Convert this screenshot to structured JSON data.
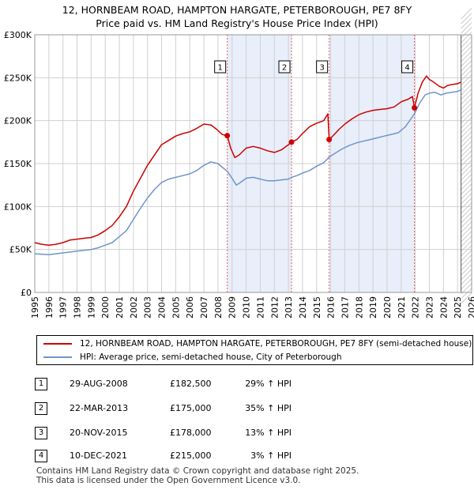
{
  "title": {
    "line1": "12, HORNBEAM ROAD, HAMPTON HARGATE, PETERBOROUGH, PE7 8FY",
    "line2": "Price paid vs. HM Land Registry's House Price Index (HPI)"
  },
  "colors": {
    "property_line": "#cc0000",
    "hpi_line": "#6e96c8",
    "shade": "#e8eefa",
    "marker_line": "#e06060"
  },
  "chart_data": {
    "type": "line",
    "ylabel": "",
    "xlabel": "",
    "ylim": [
      0,
      300000
    ],
    "xlim": [
      1995,
      2026
    ],
    "y_ticks": [
      {
        "value": 0,
        "label": "£0"
      },
      {
        "value": 50000,
        "label": "£50K"
      },
      {
        "value": 100000,
        "label": "£100K"
      },
      {
        "value": 150000,
        "label": "£150K"
      },
      {
        "value": 200000,
        "label": "£200K"
      },
      {
        "value": 250000,
        "label": "£250K"
      },
      {
        "value": 300000,
        "label": "£300K"
      }
    ],
    "x_ticks": [
      "1995",
      "1996",
      "1997",
      "1998",
      "1999",
      "2000",
      "2001",
      "2002",
      "2003",
      "2004",
      "2005",
      "2006",
      "2007",
      "2008",
      "2009",
      "2010",
      "2011",
      "2012",
      "2013",
      "2014",
      "2015",
      "2016",
      "2017",
      "2018",
      "2019",
      "2020",
      "2021",
      "2022",
      "2023",
      "2024",
      "2025",
      "2026"
    ],
    "shaded_ranges": [
      [
        2008.66,
        2013.22
      ],
      [
        2015.89,
        2021.94
      ]
    ],
    "forecast_start": 2025.25,
    "series": [
      {
        "name": "12, HORNBEAM ROAD, HAMPTON HARGATE, PETERBOROUGH, PE7 8FY (semi-detached house)",
        "x": [
          1995.0,
          1995.5,
          1996.0,
          1996.5,
          1997.0,
          1997.5,
          1998.0,
          1998.5,
          1999.0,
          1999.5,
          2000.0,
          2000.5,
          2001.0,
          2001.5,
          2002.0,
          2002.5,
          2003.0,
          2003.5,
          2004.0,
          2004.5,
          2005.0,
          2005.5,
          2006.0,
          2006.5,
          2007.0,
          2007.5,
          2007.9,
          2008.3,
          2008.66,
          2008.9,
          2009.2,
          2009.5,
          2010.0,
          2010.5,
          2011.0,
          2011.5,
          2012.0,
          2012.5,
          2013.0,
          2013.22,
          2013.6,
          2014.0,
          2014.5,
          2015.0,
          2015.5,
          2015.8,
          2015.89,
          2016.2,
          2016.6,
          2017.0,
          2017.5,
          2018.0,
          2018.5,
          2019.0,
          2019.5,
          2020.0,
          2020.5,
          2021.0,
          2021.5,
          2021.8,
          2021.94,
          2022.2,
          2022.5,
          2022.8,
          2023.0,
          2023.3,
          2023.7,
          2024.0,
          2024.3,
          2024.6,
          2025.0,
          2025.25
        ],
        "y": [
          58000,
          56000,
          55000,
          56000,
          58000,
          61000,
          62000,
          63000,
          64000,
          67000,
          72000,
          78000,
          88000,
          100000,
          118000,
          133000,
          148000,
          160000,
          172000,
          177000,
          182000,
          185000,
          187000,
          191000,
          196000,
          195000,
          190000,
          184000,
          182500,
          168000,
          157000,
          160000,
          168000,
          170000,
          168000,
          165000,
          163000,
          166000,
          172000,
          175000,
          178000,
          185000,
          193000,
          197000,
          200000,
          208000,
          178000,
          183000,
          190000,
          196000,
          202000,
          207000,
          210000,
          212000,
          213000,
          214000,
          216000,
          222000,
          225000,
          228000,
          215000,
          232000,
          245000,
          252000,
          248000,
          245000,
          240000,
          238000,
          241000,
          242000,
          243000,
          245000
        ]
      },
      {
        "name": "HPI: Average price, semi-detached house, City of Peterborough",
        "x": [
          1995.0,
          1995.5,
          1996.0,
          1996.5,
          1997.0,
          1997.5,
          1998.0,
          1998.5,
          1999.0,
          1999.5,
          2000.0,
          2000.5,
          2001.0,
          2001.5,
          2002.0,
          2002.5,
          2003.0,
          2003.5,
          2004.0,
          2004.5,
          2005.0,
          2005.5,
          2006.0,
          2006.5,
          2007.0,
          2007.5,
          2008.0,
          2008.66,
          2009.0,
          2009.3,
          2009.6,
          2010.0,
          2010.5,
          2011.0,
          2011.5,
          2012.0,
          2012.5,
          2013.0,
          2013.22,
          2013.6,
          2014.0,
          2014.5,
          2015.0,
          2015.5,
          2015.89,
          2016.3,
          2016.8,
          2017.3,
          2017.8,
          2018.3,
          2018.8,
          2019.3,
          2019.8,
          2020.3,
          2020.8,
          2021.3,
          2021.94,
          2022.3,
          2022.7,
          2023.0,
          2023.4,
          2023.8,
          2024.2,
          2024.6,
          2025.0,
          2025.25
        ],
        "y": [
          45000,
          44500,
          44000,
          45000,
          46000,
          47000,
          48000,
          49000,
          50000,
          52000,
          55000,
          58000,
          65000,
          72000,
          85000,
          98000,
          110000,
          120000,
          128000,
          132000,
          134000,
          136000,
          138000,
          142000,
          148000,
          152000,
          150000,
          141000,
          133000,
          125000,
          128000,
          133000,
          134000,
          132000,
          130000,
          130000,
          131000,
          132000,
          134000,
          136000,
          139000,
          142000,
          147000,
          151000,
          157500,
          162000,
          167000,
          171000,
          174000,
          176000,
          178000,
          180000,
          182000,
          184000,
          186000,
          193000,
          208000,
          220000,
          230000,
          232000,
          233000,
          230000,
          232000,
          233000,
          234000,
          236000
        ]
      }
    ],
    "markers": [
      {
        "label": "1",
        "x": 2008.66,
        "y": 182500
      },
      {
        "label": "2",
        "x": 2013.22,
        "y": 175000
      },
      {
        "label": "3",
        "x": 2015.89,
        "y": 178000
      },
      {
        "label": "4",
        "x": 2021.94,
        "y": 215000
      }
    ]
  },
  "legend": {
    "property": "12, HORNBEAM ROAD, HAMPTON HARGATE, PETERBOROUGH, PE7 8FY (semi-detached house)",
    "hpi": "HPI: Average price, semi-detached house, City of Peterborough"
  },
  "transactions": [
    {
      "num": "1",
      "date": "29-AUG-2008",
      "price": "£182,500",
      "hpi": "29% ↑ HPI"
    },
    {
      "num": "2",
      "date": "22-MAR-2013",
      "price": "£175,000",
      "hpi": "35% ↑ HPI"
    },
    {
      "num": "3",
      "date": "20-NOV-2015",
      "price": "£178,000",
      "hpi": "13% ↑ HPI"
    },
    {
      "num": "4",
      "date": "10-DEC-2021",
      "price": "£215,000",
      "hpi": "3% ↑ HPI"
    }
  ],
  "footer": {
    "line1": "Contains HM Land Registry data © Crown copyright and database right 2025.",
    "line2": "This data is licensed under the Open Government Licence v3.0."
  }
}
